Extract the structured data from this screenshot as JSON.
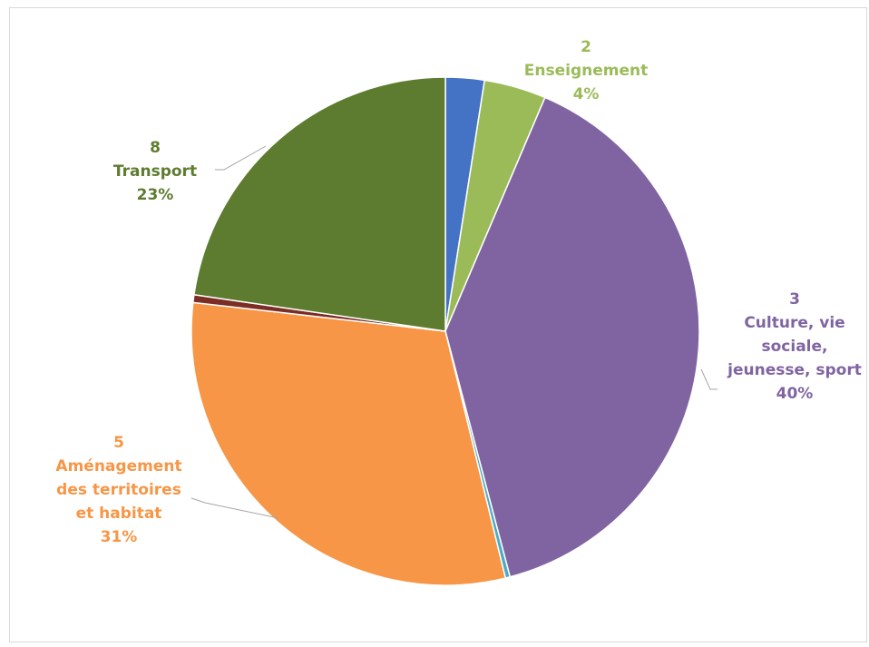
{
  "chart_data": {
    "type": "pie",
    "title": "",
    "start_angle_deg": 0,
    "slices": [
      {
        "code": "",
        "name": "",
        "pct_label": "",
        "value": 2.5,
        "color": "#4472c4"
      },
      {
        "code": "2",
        "name": "Enseignement",
        "pct_label": "4%",
        "value": 4,
        "color": "#9bbb59"
      },
      {
        "code": "3",
        "name": "Culture, vie sociale, jeunesse, sport",
        "pct_label": "40%",
        "value": 40,
        "color": "#8064a2"
      },
      {
        "code": "",
        "name": "",
        "pct_label": "",
        "value": 0.3,
        "color": "#4bacc6"
      },
      {
        "code": "5",
        "name": "Aménagement des territoires et habitat",
        "pct_label": "31%",
        "value": 31,
        "color": "#f79646"
      },
      {
        "code": "",
        "name": "",
        "pct_label": "",
        "value": 0.5,
        "color": "#7b2d26"
      },
      {
        "code": "8",
        "name": "Transport",
        "pct_label": "23%",
        "value": 23,
        "color": "#5e7c2f"
      }
    ],
    "labels": [
      {
        "slice": 1,
        "lines": [
          "2",
          "Enseignement",
          "4%"
        ],
        "color": "#9bbb59"
      },
      {
        "slice": 2,
        "lines": [
          "3",
          "Culture, vie",
          "sociale,",
          "jeunesse, sport",
          "40%"
        ],
        "color": "#8064a2"
      },
      {
        "slice": 4,
        "lines": [
          "5",
          "Aménagement",
          "des territoires",
          "et habitat",
          "31%"
        ],
        "color": "#f79646"
      },
      {
        "slice": 6,
        "lines": [
          "8",
          "Transport",
          "23%"
        ],
        "color": "#5e7c2f"
      }
    ]
  }
}
